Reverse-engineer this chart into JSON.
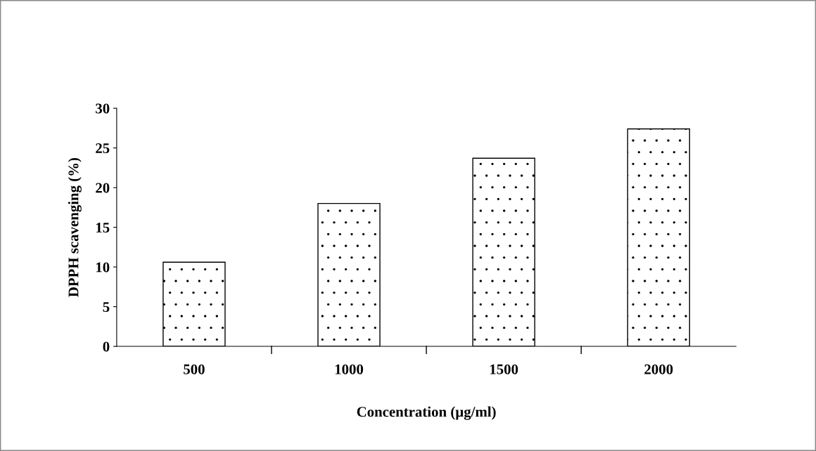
{
  "chart_data": {
    "type": "bar",
    "xlabel": "Concentration (µg/ml)",
    "ylabel": "DPPH scavenging (%)",
    "categories": [
      "500",
      "1000",
      "1500",
      "2000"
    ],
    "values": [
      10.6,
      18.0,
      23.7,
      27.4
    ],
    "color": "#ffffff",
    "ylim": [
      0,
      30
    ],
    "yticks": [
      0,
      5,
      10,
      15,
      20,
      25,
      30
    ],
    "grid": false,
    "legend": false
  }
}
